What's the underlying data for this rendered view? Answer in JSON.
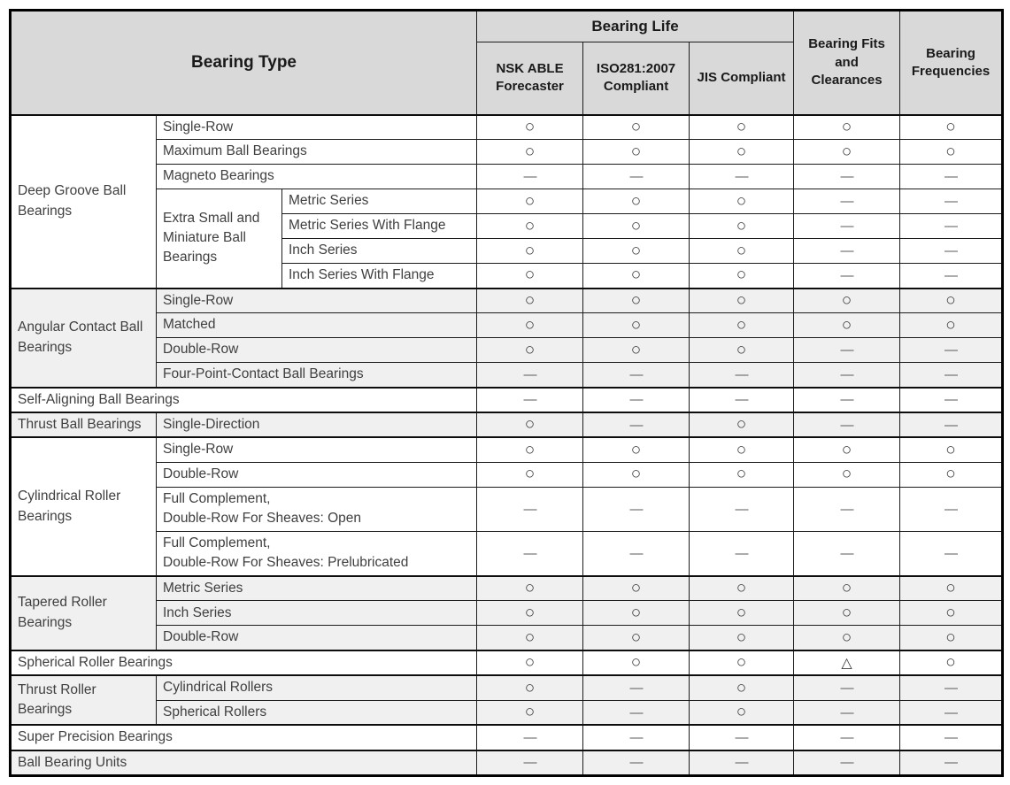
{
  "header": {
    "bearing_type": "Bearing Type",
    "bearing_life": "Bearing Life",
    "sub_columns": [
      "NSK ABLE Forecaster",
      "ISO281:2007 Compliant",
      "JIS Compliant"
    ],
    "fits_clearances": "Bearing Fits and Clearances",
    "frequencies": "Bearing Frequencies"
  },
  "symbols": {
    "circle": "○",
    "dash": "—",
    "triangle": "△"
  },
  "legend_meaning": {
    "circle": "supported",
    "dash": "not-supported",
    "triangle": "partially-supported"
  },
  "colors": {
    "header_bg": "#d9d9d9",
    "shaded_row_bg": "#f0f0f0",
    "border": "#1c1c1c",
    "text": "#3f3f3f"
  },
  "rows": [
    {
      "first": true,
      "shaded": false,
      "cells": [
        {
          "t": "Deep Groove Ball Bearings",
          "rs": 7,
          "cls": "group"
        },
        {
          "t": "Single-Row",
          "cs": 2
        },
        {
          "m": "circle"
        },
        {
          "m": "circle"
        },
        {
          "m": "circle"
        },
        {
          "m": "circle"
        },
        {
          "m": "circle"
        }
      ]
    },
    {
      "first": false,
      "shaded": false,
      "cells": [
        {
          "t": "Maximum Ball Bearings",
          "cs": 2
        },
        {
          "m": "circle"
        },
        {
          "m": "circle"
        },
        {
          "m": "circle"
        },
        {
          "m": "circle"
        },
        {
          "m": "circle"
        }
      ]
    },
    {
      "first": false,
      "shaded": false,
      "cells": [
        {
          "t": "Magneto Bearings",
          "cs": 2
        },
        {
          "m": "dash"
        },
        {
          "m": "dash"
        },
        {
          "m": "dash"
        },
        {
          "m": "dash"
        },
        {
          "m": "dash"
        }
      ]
    },
    {
      "first": false,
      "shaded": false,
      "cells": [
        {
          "t": "Extra Small and Miniature Ball Bearings",
          "rs": 4,
          "cls": "group"
        },
        {
          "t": "Metric Series"
        },
        {
          "m": "circle"
        },
        {
          "m": "circle"
        },
        {
          "m": "circle"
        },
        {
          "m": "dash"
        },
        {
          "m": "dash"
        }
      ]
    },
    {
      "first": false,
      "shaded": false,
      "cells": [
        {
          "t": "Metric Series With Flange"
        },
        {
          "m": "circle"
        },
        {
          "m": "circle"
        },
        {
          "m": "circle"
        },
        {
          "m": "dash"
        },
        {
          "m": "dash"
        }
      ]
    },
    {
      "first": false,
      "shaded": false,
      "cells": [
        {
          "t": "Inch Series"
        },
        {
          "m": "circle"
        },
        {
          "m": "circle"
        },
        {
          "m": "circle"
        },
        {
          "m": "dash"
        },
        {
          "m": "dash"
        }
      ]
    },
    {
      "first": false,
      "shaded": false,
      "cells": [
        {
          "t": "Inch Series With Flange"
        },
        {
          "m": "circle"
        },
        {
          "m": "circle"
        },
        {
          "m": "circle"
        },
        {
          "m": "dash"
        },
        {
          "m": "dash"
        }
      ]
    },
    {
      "first": true,
      "shaded": true,
      "cells": [
        {
          "t": "Angular Contact Ball Bearings",
          "rs": 4,
          "cls": "group"
        },
        {
          "t": "Single-Row",
          "cs": 2
        },
        {
          "m": "circle"
        },
        {
          "m": "circle"
        },
        {
          "m": "circle"
        },
        {
          "m": "circle"
        },
        {
          "m": "circle"
        }
      ]
    },
    {
      "first": false,
      "shaded": true,
      "cells": [
        {
          "t": "Matched",
          "cs": 2
        },
        {
          "m": "circle"
        },
        {
          "m": "circle"
        },
        {
          "m": "circle"
        },
        {
          "m": "circle"
        },
        {
          "m": "circle"
        }
      ]
    },
    {
      "first": false,
      "shaded": true,
      "cells": [
        {
          "t": "Double-Row",
          "cs": 2
        },
        {
          "m": "circle"
        },
        {
          "m": "circle"
        },
        {
          "m": "circle"
        },
        {
          "m": "dash"
        },
        {
          "m": "dash"
        }
      ]
    },
    {
      "first": false,
      "shaded": true,
      "cells": [
        {
          "t": "Four-Point-Contact Ball Bearings",
          "cs": 2
        },
        {
          "m": "dash"
        },
        {
          "m": "dash"
        },
        {
          "m": "dash"
        },
        {
          "m": "dash"
        },
        {
          "m": "dash"
        }
      ]
    },
    {
      "first": true,
      "shaded": false,
      "cells": [
        {
          "t": "Self-Aligning Ball Bearings",
          "cs": 3,
          "cls": "group"
        },
        {
          "m": "dash"
        },
        {
          "m": "dash"
        },
        {
          "m": "dash"
        },
        {
          "m": "dash"
        },
        {
          "m": "dash"
        }
      ]
    },
    {
      "first": true,
      "shaded": true,
      "cells": [
        {
          "t": "Thrust Ball Bearings",
          "cls": "group"
        },
        {
          "t": "Single-Direction",
          "cs": 2
        },
        {
          "m": "circle"
        },
        {
          "m": "dash"
        },
        {
          "m": "circle"
        },
        {
          "m": "dash"
        },
        {
          "m": "dash"
        }
      ]
    },
    {
      "first": true,
      "shaded": false,
      "cells": [
        {
          "t": "Cylindrical Roller Bearings",
          "rs": 4,
          "cls": "group"
        },
        {
          "t": "Single-Row",
          "cs": 2
        },
        {
          "m": "circle"
        },
        {
          "m": "circle"
        },
        {
          "m": "circle"
        },
        {
          "m": "circle"
        },
        {
          "m": "circle"
        }
      ]
    },
    {
      "first": false,
      "shaded": false,
      "cells": [
        {
          "t": "Double-Row",
          "cs": 2
        },
        {
          "m": "circle"
        },
        {
          "m": "circle"
        },
        {
          "m": "circle"
        },
        {
          "m": "circle"
        },
        {
          "m": "circle"
        }
      ]
    },
    {
      "first": false,
      "shaded": false,
      "tall": true,
      "cells": [
        {
          "t": "Full Complement,\nDouble-Row For Sheaves: Open",
          "cs": 2
        },
        {
          "m": "dash"
        },
        {
          "m": "dash"
        },
        {
          "m": "dash"
        },
        {
          "m": "dash"
        },
        {
          "m": "dash"
        }
      ]
    },
    {
      "first": false,
      "shaded": false,
      "tall": true,
      "cells": [
        {
          "t": "Full Complement,\nDouble-Row For Sheaves: Prelubricated",
          "cs": 2
        },
        {
          "m": "dash"
        },
        {
          "m": "dash"
        },
        {
          "m": "dash"
        },
        {
          "m": "dash"
        },
        {
          "m": "dash"
        }
      ]
    },
    {
      "first": true,
      "shaded": true,
      "cells": [
        {
          "t": "Tapered Roller Bearings",
          "rs": 3,
          "cls": "group"
        },
        {
          "t": "Metric Series",
          "cs": 2
        },
        {
          "m": "circle"
        },
        {
          "m": "circle"
        },
        {
          "m": "circle"
        },
        {
          "m": "circle"
        },
        {
          "m": "circle"
        }
      ]
    },
    {
      "first": false,
      "shaded": true,
      "cells": [
        {
          "t": "Inch Series",
          "cs": 2
        },
        {
          "m": "circle"
        },
        {
          "m": "circle"
        },
        {
          "m": "circle"
        },
        {
          "m": "circle"
        },
        {
          "m": "circle"
        }
      ]
    },
    {
      "first": false,
      "shaded": true,
      "cells": [
        {
          "t": "Double-Row",
          "cs": 2
        },
        {
          "m": "circle"
        },
        {
          "m": "circle"
        },
        {
          "m": "circle"
        },
        {
          "m": "circle"
        },
        {
          "m": "circle"
        }
      ]
    },
    {
      "first": true,
      "shaded": false,
      "cells": [
        {
          "t": "Spherical Roller Bearings",
          "cs": 3,
          "cls": "group"
        },
        {
          "m": "circle"
        },
        {
          "m": "circle"
        },
        {
          "m": "circle"
        },
        {
          "m": "triangle"
        },
        {
          "m": "circle"
        }
      ]
    },
    {
      "first": true,
      "shaded": true,
      "cells": [
        {
          "t": "Thrust Roller Bearings",
          "rs": 2,
          "cls": "group"
        },
        {
          "t": "Cylindrical Rollers",
          "cs": 2
        },
        {
          "m": "circle"
        },
        {
          "m": "dash"
        },
        {
          "m": "circle"
        },
        {
          "m": "dash"
        },
        {
          "m": "dash"
        }
      ]
    },
    {
      "first": false,
      "shaded": true,
      "cells": [
        {
          "t": "Spherical Rollers",
          "cs": 2
        },
        {
          "m": "circle"
        },
        {
          "m": "dash"
        },
        {
          "m": "circle"
        },
        {
          "m": "dash"
        },
        {
          "m": "dash"
        }
      ]
    },
    {
      "first": true,
      "shaded": false,
      "cells": [
        {
          "t": "Super Precision Bearings",
          "cs": 3,
          "cls": "group"
        },
        {
          "m": "dash"
        },
        {
          "m": "dash"
        },
        {
          "m": "dash"
        },
        {
          "m": "dash"
        },
        {
          "m": "dash"
        }
      ]
    },
    {
      "first": true,
      "shaded": true,
      "cells": [
        {
          "t": "Ball Bearing Units",
          "cs": 3,
          "cls": "group"
        },
        {
          "m": "dash"
        },
        {
          "m": "dash"
        },
        {
          "m": "dash"
        },
        {
          "m": "dash"
        },
        {
          "m": "dash"
        }
      ]
    }
  ]
}
